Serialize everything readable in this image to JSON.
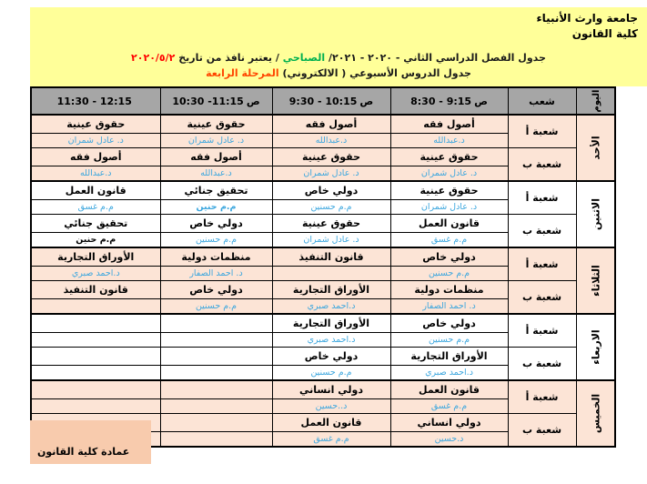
{
  "colors": {
    "banner_bg": "#FFFF99",
    "header_row_bg": "#A6A6A6",
    "tint_row_bg": "#FCE4D6",
    "footer_box_bg": "#F8CBAD",
    "teacher_text": "#3BA6DE",
    "program_text": "#00B050",
    "date_text": "#FF0000",
    "stage_text": "#FF4500"
  },
  "header": {
    "university": "جامعة وارث الأنبياء",
    "college": "كلية القانون",
    "title1_semester": "جدول الفصل الدراسي الثاني - ٢٠٢٠ - ٢٠٢١/",
    "title1_program": "الصباحي",
    "title1_effective": "/ يعتبر نافذ من تاريخ",
    "title1_date": "٢٠٢٠/٥/٢",
    "title2_prefix": "جدول الدروس الأسبوعي ( الالكتروني)",
    "title2_stage": "المرحلة الرابعة"
  },
  "table": {
    "day_header": "اليوم",
    "section_header": "شعب",
    "time_slots": [
      {
        "range": "8:30 - 9:15",
        "suffix": "ص"
      },
      {
        "range": "9:30 - 10:15",
        "suffix": "ص"
      },
      {
        "range": "10:30 -11:15",
        "suffix": "ص"
      },
      {
        "range": "11:30 - 12:15",
        "suffix": ""
      }
    ],
    "days": [
      {
        "name": "الأحد",
        "sections": [
          {
            "label": "شعبة أ",
            "slots": [
              {
                "subject": "أصول فقه",
                "teacher": "د.عبدالله"
              },
              {
                "subject": "أصول فقه",
                "teacher": "د.عبدالله"
              },
              {
                "subject": "حقوق عينية",
                "teacher": "د. عادل شمران"
              },
              {
                "subject": "حقوق عينية",
                "teacher": "د. عادل شمران"
              }
            ]
          },
          {
            "label": "شعبة ب",
            "slots": [
              {
                "subject": "حقوق عينية",
                "teacher": "د. عادل شمران"
              },
              {
                "subject": "حقوق عينية",
                "teacher": "د. عادل شمران"
              },
              {
                "subject": "أصول فقه",
                "teacher": "د.عبدالله"
              },
              {
                "subject": "أصول فقه",
                "teacher": "د.عبدالله"
              }
            ]
          }
        ]
      },
      {
        "name": "الاثنين",
        "sections": [
          {
            "label": "شعبة أ",
            "slots": [
              {
                "subject": "حقوق عينية",
                "teacher": "د. عادل شمران"
              },
              {
                "subject": "دولي خاص",
                "teacher": "م.م حسنين"
              },
              {
                "subject": "تحقيق جنائي",
                "teacher": "م.م حنين"
              },
              {
                "subject": "قانون العمل",
                "teacher": "م.م غسق"
              }
            ]
          },
          {
            "label": "شعبة ب",
            "slots": [
              {
                "subject": "قانون العمل",
                "teacher": "م.م غسق"
              },
              {
                "subject": "حقوق عينية",
                "teacher": "د. عادل شمران"
              },
              {
                "subject": "دولي خاص",
                "teacher": "م.م حسنين"
              },
              {
                "subject": "تحقيق جنائي",
                "teacher": "م.م حنين"
              }
            ]
          }
        ]
      },
      {
        "name": "الثلاثاء",
        "sections": [
          {
            "label": "شعبة أ",
            "slots": [
              {
                "subject": "دولي خاص",
                "teacher": "م.م حسنين"
              },
              {
                "subject": "قانون التنفيذ",
                "teacher": ""
              },
              {
                "subject": "منظمات دولية",
                "teacher": "د. احمد الصفار"
              },
              {
                "subject": "الأوراق التجارية",
                "teacher": "د.احمد صبري"
              }
            ]
          },
          {
            "label": "شعبة ب",
            "slots": [
              {
                "subject": "منظمات دولية",
                "teacher": "د. احمد الصفار"
              },
              {
                "subject": "الأوراق التجارية",
                "teacher": "د.احمد صبري"
              },
              {
                "subject": "دولي خاص",
                "teacher": "م.م حسنين"
              },
              {
                "subject": "قانون التنفيذ",
                "teacher": ""
              }
            ]
          }
        ]
      },
      {
        "name": "الاربعاء",
        "sections": [
          {
            "label": "شعبة أ",
            "slots": [
              {
                "subject": "دولي خاص",
                "teacher": "م.م حسنين"
              },
              {
                "subject": "الأوراق التجارية",
                "teacher": "د.احمد صبري"
              },
              {
                "subject": "",
                "teacher": ""
              },
              {
                "subject": "",
                "teacher": ""
              }
            ]
          },
          {
            "label": "شعبة ب",
            "slots": [
              {
                "subject": "الأوراق التجارية",
                "teacher": "د.احمد صبري"
              },
              {
                "subject": "دولي خاص",
                "teacher": "م.م حسنين"
              },
              {
                "subject": "",
                "teacher": ""
              },
              {
                "subject": "",
                "teacher": ""
              }
            ]
          }
        ]
      },
      {
        "name": "الخميس",
        "sections": [
          {
            "label": "شعبة أ",
            "slots": [
              {
                "subject": "قانون العمل",
                "teacher": "م.م غسق"
              },
              {
                "subject": "دولي انساني",
                "teacher": "د..حسين"
              },
              {
                "subject": "",
                "teacher": ""
              },
              {
                "subject": "",
                "teacher": ""
              }
            ]
          },
          {
            "label": "شعبة ب",
            "slots": [
              {
                "subject": "دولي انساني",
                "teacher": "د.حسين"
              },
              {
                "subject": "قانون العمل",
                "teacher": "م.م غسق"
              },
              {
                "subject": "",
                "teacher": ""
              },
              {
                "subject": "",
                "teacher": ""
              }
            ]
          }
        ]
      }
    ]
  },
  "footer": {
    "label": "عمادة كلية القانون"
  }
}
